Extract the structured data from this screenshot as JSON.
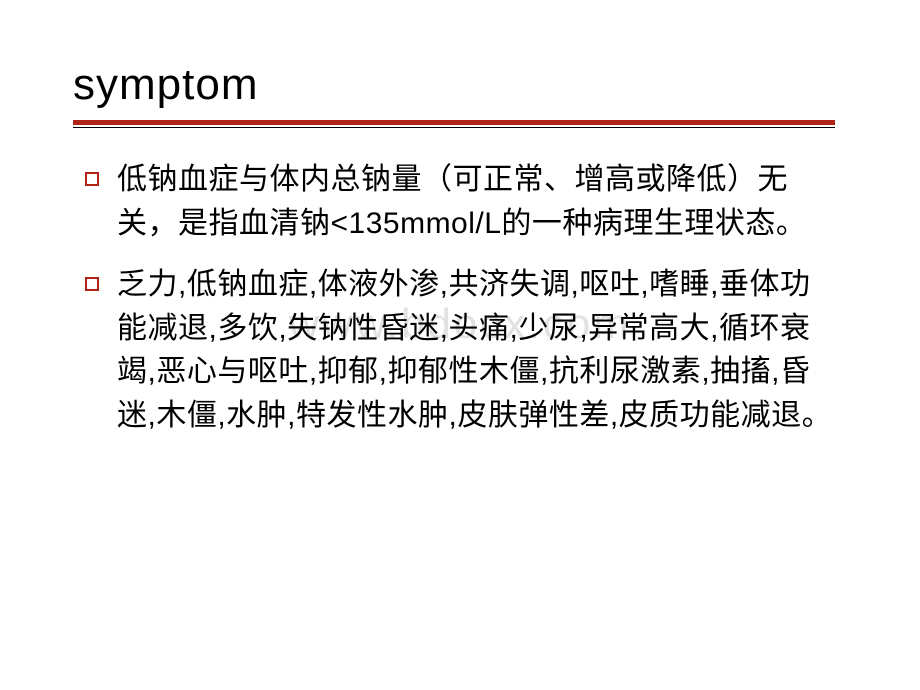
{
  "slide": {
    "title": "symptom",
    "title_color": "#000000",
    "title_fontsize": 44,
    "underline_color_primary": "#b02418",
    "underline_color_secondary": "#000000",
    "bullets": [
      {
        "marker_color": "#b02418",
        "text": "低钠血症与体内总钠量（可正常、增高或降低）无关，是指血清钠<135mmol/L的一种病理生理状态。"
      },
      {
        "marker_color": "#b02418",
        "text": "乏力,低钠血症,体液外渗,共济失调,呕吐,嗜睡,垂体功能减退,多饮,失钠性昏迷,头痛,少尿,异常高大,循环衰竭,恶心与呕吐,抑郁,抑郁性木僵,抗利尿激素,抽搐,昏迷,木僵,水肿,特发性水肿,皮肤弹性差,皮质功能减退。"
      }
    ],
    "body_fontsize": 30,
    "body_color": "#000000",
    "background_color": "#ffffff",
    "watermark": "www.bdocx.com",
    "watermark_color": "rgba(200,200,200,0.55)"
  }
}
